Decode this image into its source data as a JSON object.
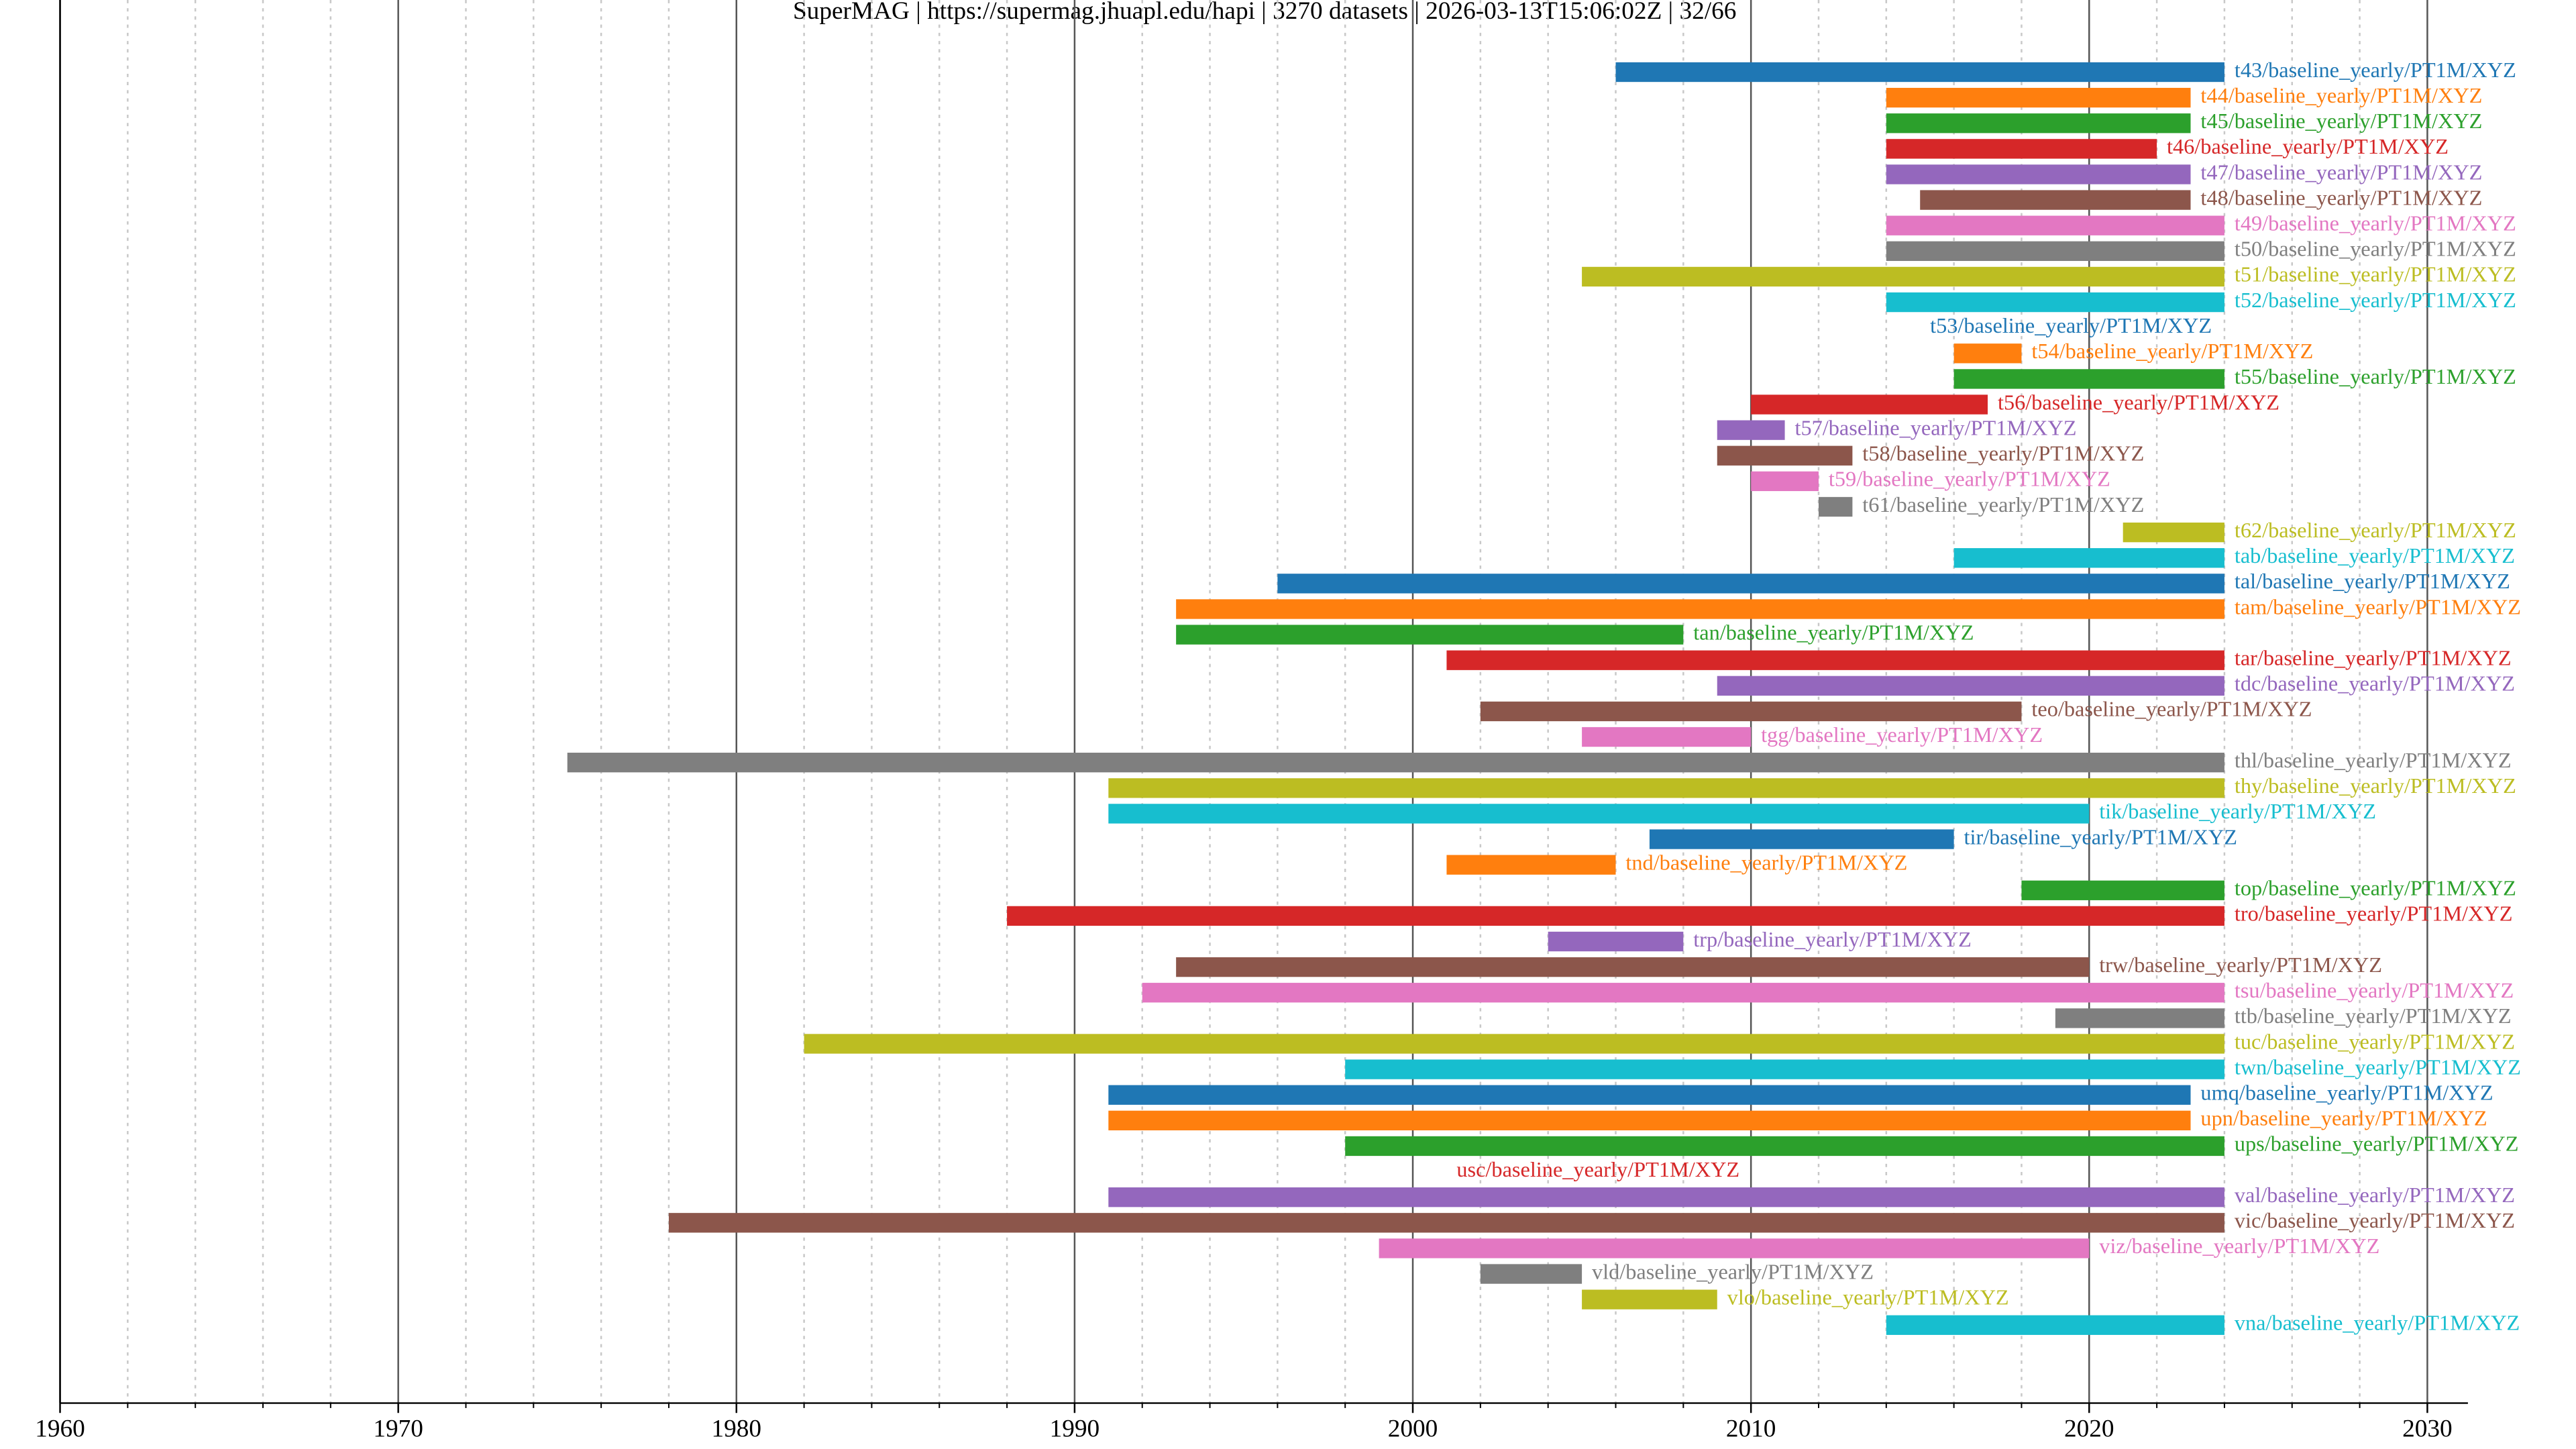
{
  "chart_data": {
    "type": "timeline",
    "title": "SuperMAG | https://supermag.jhuapl.edu/hapi | 3270 datasets | 2026-03-13T15:06:02Z | 32/66",
    "xlim": [
      1960,
      2031.2
    ],
    "xticks": [
      1960,
      1970,
      1980,
      1990,
      2000,
      2010,
      2020,
      2030
    ],
    "xminorticks": [
      1962,
      1964,
      1966,
      1968,
      1972,
      1974,
      1976,
      1978,
      1982,
      1984,
      1986,
      1988,
      1992,
      1994,
      1996,
      1998,
      2002,
      2004,
      2006,
      2008,
      2012,
      2014,
      2016,
      2018,
      2022,
      2024,
      2026,
      2028
    ],
    "grid": true,
    "series": [
      {
        "name": "t43/baseline_yearly/PT1M/XYZ",
        "color": "#1f77b4",
        "values": [
          2006,
          2024
        ]
      },
      {
        "name": "t44/baseline_yearly/PT1M/XYZ",
        "color": "#ff7f0e",
        "values": [
          2014,
          2023
        ]
      },
      {
        "name": "t45/baseline_yearly/PT1M/XYZ",
        "color": "#2ca02c",
        "values": [
          2014,
          2023
        ]
      },
      {
        "name": "t46/baseline_yearly/PT1M/XYZ",
        "color": "#d62728",
        "values": [
          2014,
          2022
        ]
      },
      {
        "name": "t47/baseline_yearly/PT1M/XYZ",
        "color": "#9467bd",
        "values": [
          2014,
          2023
        ]
      },
      {
        "name": "t48/baseline_yearly/PT1M/XYZ",
        "color": "#8c564b",
        "values": [
          2015,
          2023
        ]
      },
      {
        "name": "t49/baseline_yearly/PT1M/XYZ",
        "color": "#e377c2",
        "values": [
          2014,
          2024
        ]
      },
      {
        "name": "t50/baseline_yearly/PT1M/XYZ",
        "color": "#7f7f7f",
        "values": [
          2014,
          2024
        ]
      },
      {
        "name": "t51/baseline_yearly/PT1M/XYZ",
        "color": "#bcbd22",
        "values": [
          2005,
          2024
        ]
      },
      {
        "name": "t52/baseline_yearly/PT1M/XYZ",
        "color": "#17becf",
        "values": [
          2014,
          2024
        ]
      },
      {
        "name": "t53/baseline_yearly/PT1M/XYZ",
        "color": "#1f77b4",
        "values": [
          2015,
          2015
        ]
      },
      {
        "name": "t54/baseline_yearly/PT1M/XYZ",
        "color": "#ff7f0e",
        "values": [
          2016,
          2018
        ]
      },
      {
        "name": "t55/baseline_yearly/PT1M/XYZ",
        "color": "#2ca02c",
        "values": [
          2016,
          2024
        ]
      },
      {
        "name": "t56/baseline_yearly/PT1M/XYZ",
        "color": "#d62728",
        "values": [
          2010,
          2017
        ]
      },
      {
        "name": "t57/baseline_yearly/PT1M/XYZ",
        "color": "#9467bd",
        "values": [
          2009,
          2011
        ]
      },
      {
        "name": "t58/baseline_yearly/PT1M/XYZ",
        "color": "#8c564b",
        "values": [
          2009,
          2013
        ]
      },
      {
        "name": "t59/baseline_yearly/PT1M/XYZ",
        "color": "#e377c2",
        "values": [
          2010,
          2012
        ]
      },
      {
        "name": "t61/baseline_yearly/PT1M/XYZ",
        "color": "#7f7f7f",
        "values": [
          2012,
          2013
        ]
      },
      {
        "name": "t62/baseline_yearly/PT1M/XYZ",
        "color": "#bcbd22",
        "values": [
          2021,
          2024
        ]
      },
      {
        "name": "tab/baseline_yearly/PT1M/XYZ",
        "color": "#17becf",
        "values": [
          2016,
          2024
        ]
      },
      {
        "name": "tal/baseline_yearly/PT1M/XYZ",
        "color": "#1f77b4",
        "values": [
          1996,
          2024
        ]
      },
      {
        "name": "tam/baseline_yearly/PT1M/XYZ",
        "color": "#ff7f0e",
        "values": [
          1993,
          2024
        ]
      },
      {
        "name": "tan/baseline_yearly/PT1M/XYZ",
        "color": "#2ca02c",
        "values": [
          1993,
          2008
        ]
      },
      {
        "name": "tar/baseline_yearly/PT1M/XYZ",
        "color": "#d62728",
        "values": [
          2001,
          2024
        ]
      },
      {
        "name": "tdc/baseline_yearly/PT1M/XYZ",
        "color": "#9467bd",
        "values": [
          2009,
          2024
        ]
      },
      {
        "name": "teo/baseline_yearly/PT1M/XYZ",
        "color": "#8c564b",
        "values": [
          2002,
          2018
        ]
      },
      {
        "name": "tgg/baseline_yearly/PT1M/XYZ",
        "color": "#e377c2",
        "values": [
          2005,
          2010
        ]
      },
      {
        "name": "thl/baseline_yearly/PT1M/XYZ",
        "color": "#7f7f7f",
        "values": [
          1975,
          2024
        ]
      },
      {
        "name": "thy/baseline_yearly/PT1M/XYZ",
        "color": "#bcbd22",
        "values": [
          1991,
          2024
        ]
      },
      {
        "name": "tik/baseline_yearly/PT1M/XYZ",
        "color": "#17becf",
        "values": [
          1991,
          2020
        ]
      },
      {
        "name": "tir/baseline_yearly/PT1M/XYZ",
        "color": "#1f77b4",
        "values": [
          2007,
          2016
        ]
      },
      {
        "name": "tnd/baseline_yearly/PT1M/XYZ",
        "color": "#ff7f0e",
        "values": [
          2001,
          2006
        ]
      },
      {
        "name": "top/baseline_yearly/PT1M/XYZ",
        "color": "#2ca02c",
        "values": [
          2018,
          2024
        ]
      },
      {
        "name": "tro/baseline_yearly/PT1M/XYZ",
        "color": "#d62728",
        "values": [
          1988,
          2024
        ]
      },
      {
        "name": "trp/baseline_yearly/PT1M/XYZ",
        "color": "#9467bd",
        "values": [
          2004,
          2008
        ]
      },
      {
        "name": "trw/baseline_yearly/PT1M/XYZ",
        "color": "#8c564b",
        "values": [
          1993,
          2020
        ]
      },
      {
        "name": "tsu/baseline_yearly/PT1M/XYZ",
        "color": "#e377c2",
        "values": [
          1992,
          2024
        ]
      },
      {
        "name": "ttb/baseline_yearly/PT1M/XYZ",
        "color": "#7f7f7f",
        "values": [
          2019,
          2024
        ]
      },
      {
        "name": "tuc/baseline_yearly/PT1M/XYZ",
        "color": "#bcbd22",
        "values": [
          1982,
          2024
        ]
      },
      {
        "name": "twn/baseline_yearly/PT1M/XYZ",
        "color": "#17becf",
        "values": [
          1998,
          2024
        ]
      },
      {
        "name": "umq/baseline_yearly/PT1M/XYZ",
        "color": "#1f77b4",
        "values": [
          1991,
          2023
        ]
      },
      {
        "name": "upn/baseline_yearly/PT1M/XYZ",
        "color": "#ff7f0e",
        "values": [
          1991,
          2023
        ]
      },
      {
        "name": "ups/baseline_yearly/PT1M/XYZ",
        "color": "#2ca02c",
        "values": [
          1998,
          2024
        ]
      },
      {
        "name": "usc/baseline_yearly/PT1M/XYZ",
        "color": "#d62728",
        "values": [
          2001,
          2001
        ]
      },
      {
        "name": "val/baseline_yearly/PT1M/XYZ",
        "color": "#9467bd",
        "values": [
          1991,
          2024
        ]
      },
      {
        "name": "vic/baseline_yearly/PT1M/XYZ",
        "color": "#8c564b",
        "values": [
          1978,
          2024
        ]
      },
      {
        "name": "viz/baseline_yearly/PT1M/XYZ",
        "color": "#e377c2",
        "values": [
          1999,
          2020
        ]
      },
      {
        "name": "vld/baseline_yearly/PT1M/XYZ",
        "color": "#7f7f7f",
        "values": [
          2002,
          2005
        ]
      },
      {
        "name": "vlo/baseline_yearly/PT1M/XYZ",
        "color": "#bcbd22",
        "values": [
          2005,
          2009
        ]
      },
      {
        "name": "vna/baseline_yearly/PT1M/XYZ",
        "color": "#17becf",
        "values": [
          2014,
          2024
        ]
      }
    ]
  }
}
